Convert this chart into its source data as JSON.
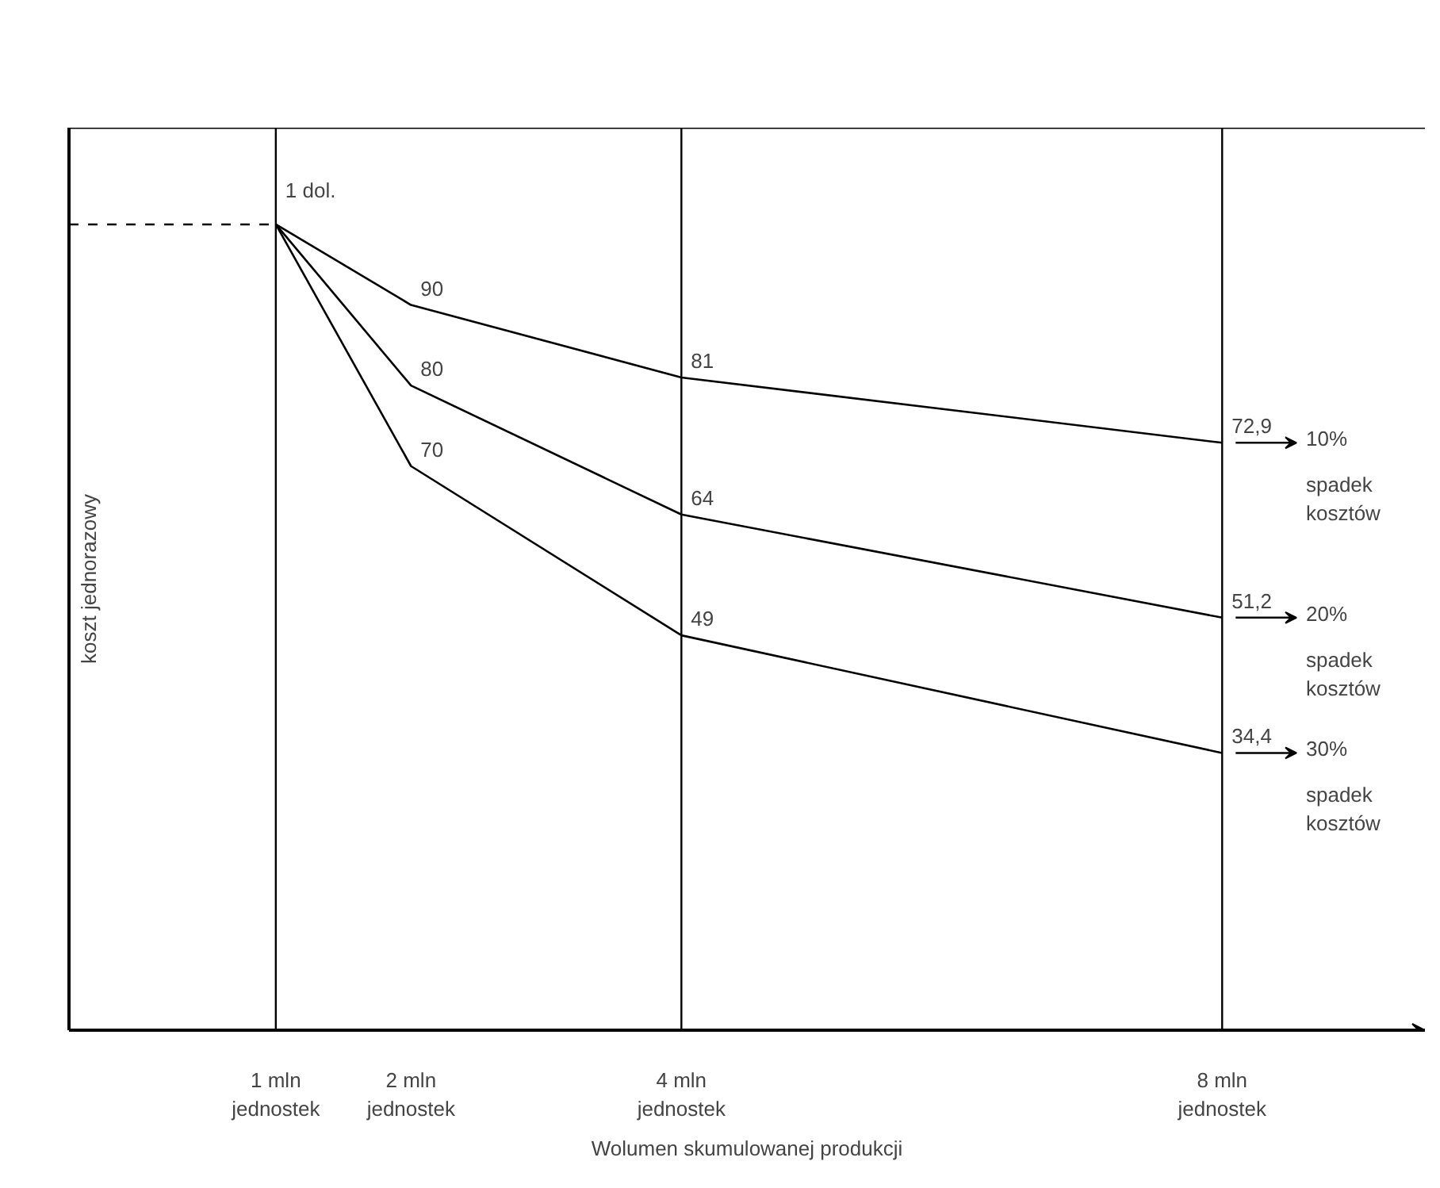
{
  "chart_data": {
    "type": "line",
    "xlabel": "Wolumen skumulowanej produkcji",
    "ylabel": "koszt jednorazowy",
    "x": [
      1,
      2,
      4,
      8
    ],
    "xlim": [
      -0.53,
      9.5
    ],
    "ylim": [
      0,
      112
    ],
    "xticks": [
      {
        "value": 1,
        "label": "1 mln\njednostek"
      },
      {
        "value": 2,
        "label": "2 mln\njednostek"
      },
      {
        "value": 4,
        "label": "4 mln\njednostek"
      },
      {
        "value": 8,
        "label": "8 mln\njednostek"
      }
    ],
    "annotations": [
      {
        "text": "1 dol.",
        "x": 1,
        "y": 100
      }
    ],
    "tick_labels": "x",
    "grid": false,
    "legend": "right",
    "marker": "none",
    "line_style": "solid",
    "series": [
      {
        "name": "10% spadek kosztów",
        "color": "#000000",
        "values": [
          100,
          90,
          81,
          72.9
        ],
        "value_labels": [
          null,
          "90",
          "81",
          "72,9"
        ]
      },
      {
        "name": "20% spadek kosztów",
        "color": "#000000",
        "values": [
          100,
          80,
          64,
          51.2
        ],
        "value_labels": [
          null,
          "80",
          "64",
          "51,2"
        ]
      },
      {
        "name": "30% spadek kosztów",
        "color": "#000000",
        "values": [
          100,
          70,
          49,
          34.4
        ],
        "value_labels": [
          null,
          "70",
          "49",
          "34,4"
        ]
      }
    ],
    "ref_lines": [
      {
        "axis": "y",
        "value": 100,
        "label": null,
        "line_style": "dashed",
        "color": "#000000"
      },
      {
        "axis": "x",
        "value": 1,
        "label": null,
        "color": "#000000"
      },
      {
        "axis": "x",
        "value": 4,
        "label": null,
        "color": "#000000"
      },
      {
        "axis": "x",
        "value": 8,
        "label": null,
        "color": "#000000"
      }
    ]
  }
}
